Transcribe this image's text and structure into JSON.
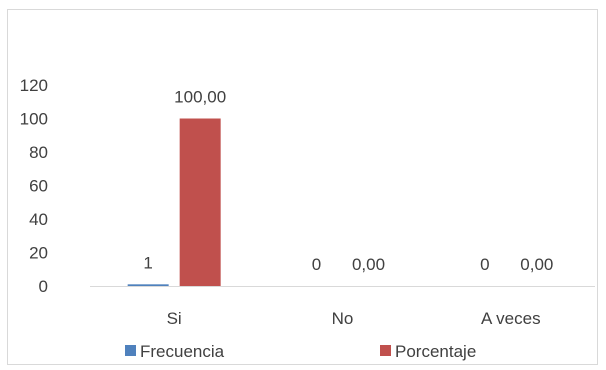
{
  "chart_data": {
    "type": "bar",
    "categories": [
      "Si",
      "No",
      "A veces"
    ],
    "series": [
      {
        "name": "Frecuencia",
        "values": [
          1,
          0,
          0
        ],
        "labels": [
          "1",
          "0",
          "0"
        ],
        "color": "#4f81bd"
      },
      {
        "name": "Porcentaje",
        "values": [
          100,
          0,
          0
        ],
        "labels": [
          "100,00",
          "0,00",
          "0,00"
        ],
        "color": "#c0504d"
      }
    ],
    "y_ticks": [
      "0",
      "20",
      "40",
      "60",
      "80",
      "100",
      "120"
    ],
    "ylim": [
      0,
      120
    ],
    "grid": false,
    "legend": "bottom"
  }
}
